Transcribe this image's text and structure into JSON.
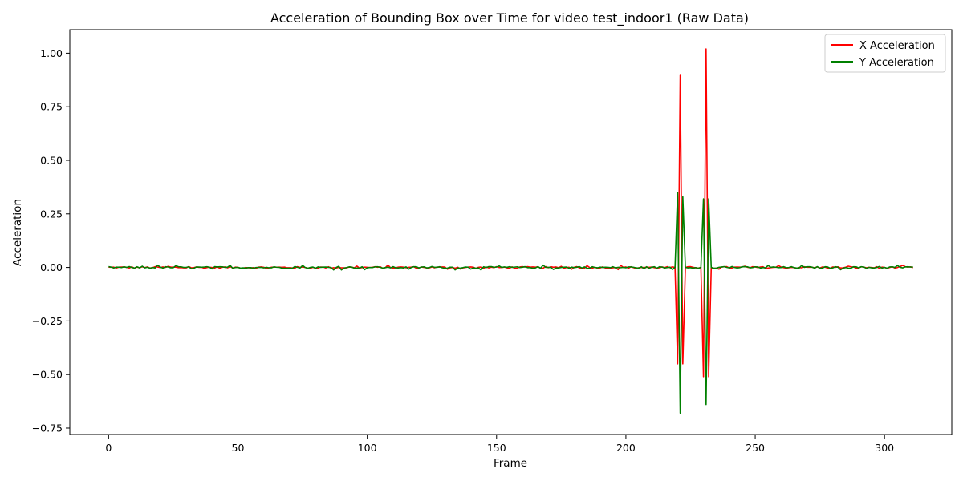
{
  "chart_data": {
    "type": "line",
    "title": "Acceleration of Bounding Box over Time for video test_indoor1 (Raw Data)",
    "xlabel": "Frame",
    "ylabel": "Acceleration",
    "xlim": [
      -15,
      326
    ],
    "ylim": [
      -0.78,
      1.11
    ],
    "xticks": [
      0,
      50,
      100,
      150,
      200,
      250,
      300
    ],
    "yticks": [
      -0.75,
      -0.5,
      -0.25,
      0.0,
      0.25,
      0.5,
      0.75,
      1.0
    ],
    "ytick_labels": [
      "−0.75",
      "−0.50",
      "−0.25",
      "0.00",
      "0.25",
      "0.50",
      "0.75",
      "1.00"
    ],
    "grid": false,
    "legend_position": "top-right",
    "series": [
      {
        "name": "X Acceleration",
        "color": "#ff0000",
        "x_start": 0,
        "x_end": 311,
        "noise_amplitude": 0.004,
        "spikes": [
          [
            219,
            0.0
          ],
          [
            220,
            -0.45
          ],
          [
            221,
            0.9
          ],
          [
            222,
            -0.45
          ],
          [
            223,
            0.0
          ],
          [
            229,
            0.0
          ],
          [
            230,
            -0.51
          ],
          [
            231,
            1.02
          ],
          [
            232,
            -0.51
          ],
          [
            233,
            0.0
          ]
        ]
      },
      {
        "name": "Y Acceleration",
        "color": "#008000",
        "x_start": 0,
        "x_end": 311,
        "noise_amplitude": 0.004,
        "spikes": [
          [
            219,
            0.0
          ],
          [
            220,
            0.35
          ],
          [
            221,
            -0.68
          ],
          [
            222,
            0.33
          ],
          [
            223,
            0.0
          ],
          [
            229,
            0.0
          ],
          [
            230,
            0.32
          ],
          [
            231,
            -0.64
          ],
          [
            232,
            0.32
          ],
          [
            233,
            0.0
          ]
        ]
      }
    ]
  }
}
